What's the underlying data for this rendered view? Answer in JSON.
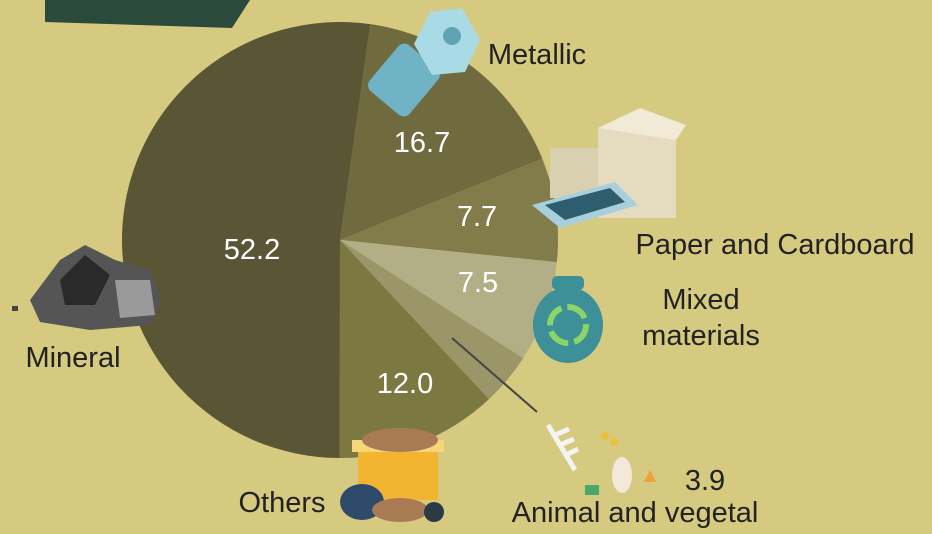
{
  "chart_data": {
    "type": "pie",
    "categories": [
      "Metallic",
      "Paper and Cardboard",
      "Mixed materials",
      "Animal and vegetal",
      "Others",
      "Mineral"
    ],
    "values": [
      16.7,
      7.7,
      7.5,
      3.9,
      12.0,
      52.2
    ],
    "value_labels": [
      "16.7",
      "7.7",
      "7.5",
      "3.9",
      "12.0",
      "52.2"
    ],
    "colors": [
      "#6f6b3f",
      "#817c4a",
      "#b2ae86",
      "#9a9668",
      "#7c7841",
      "#5a5535"
    ]
  }
}
